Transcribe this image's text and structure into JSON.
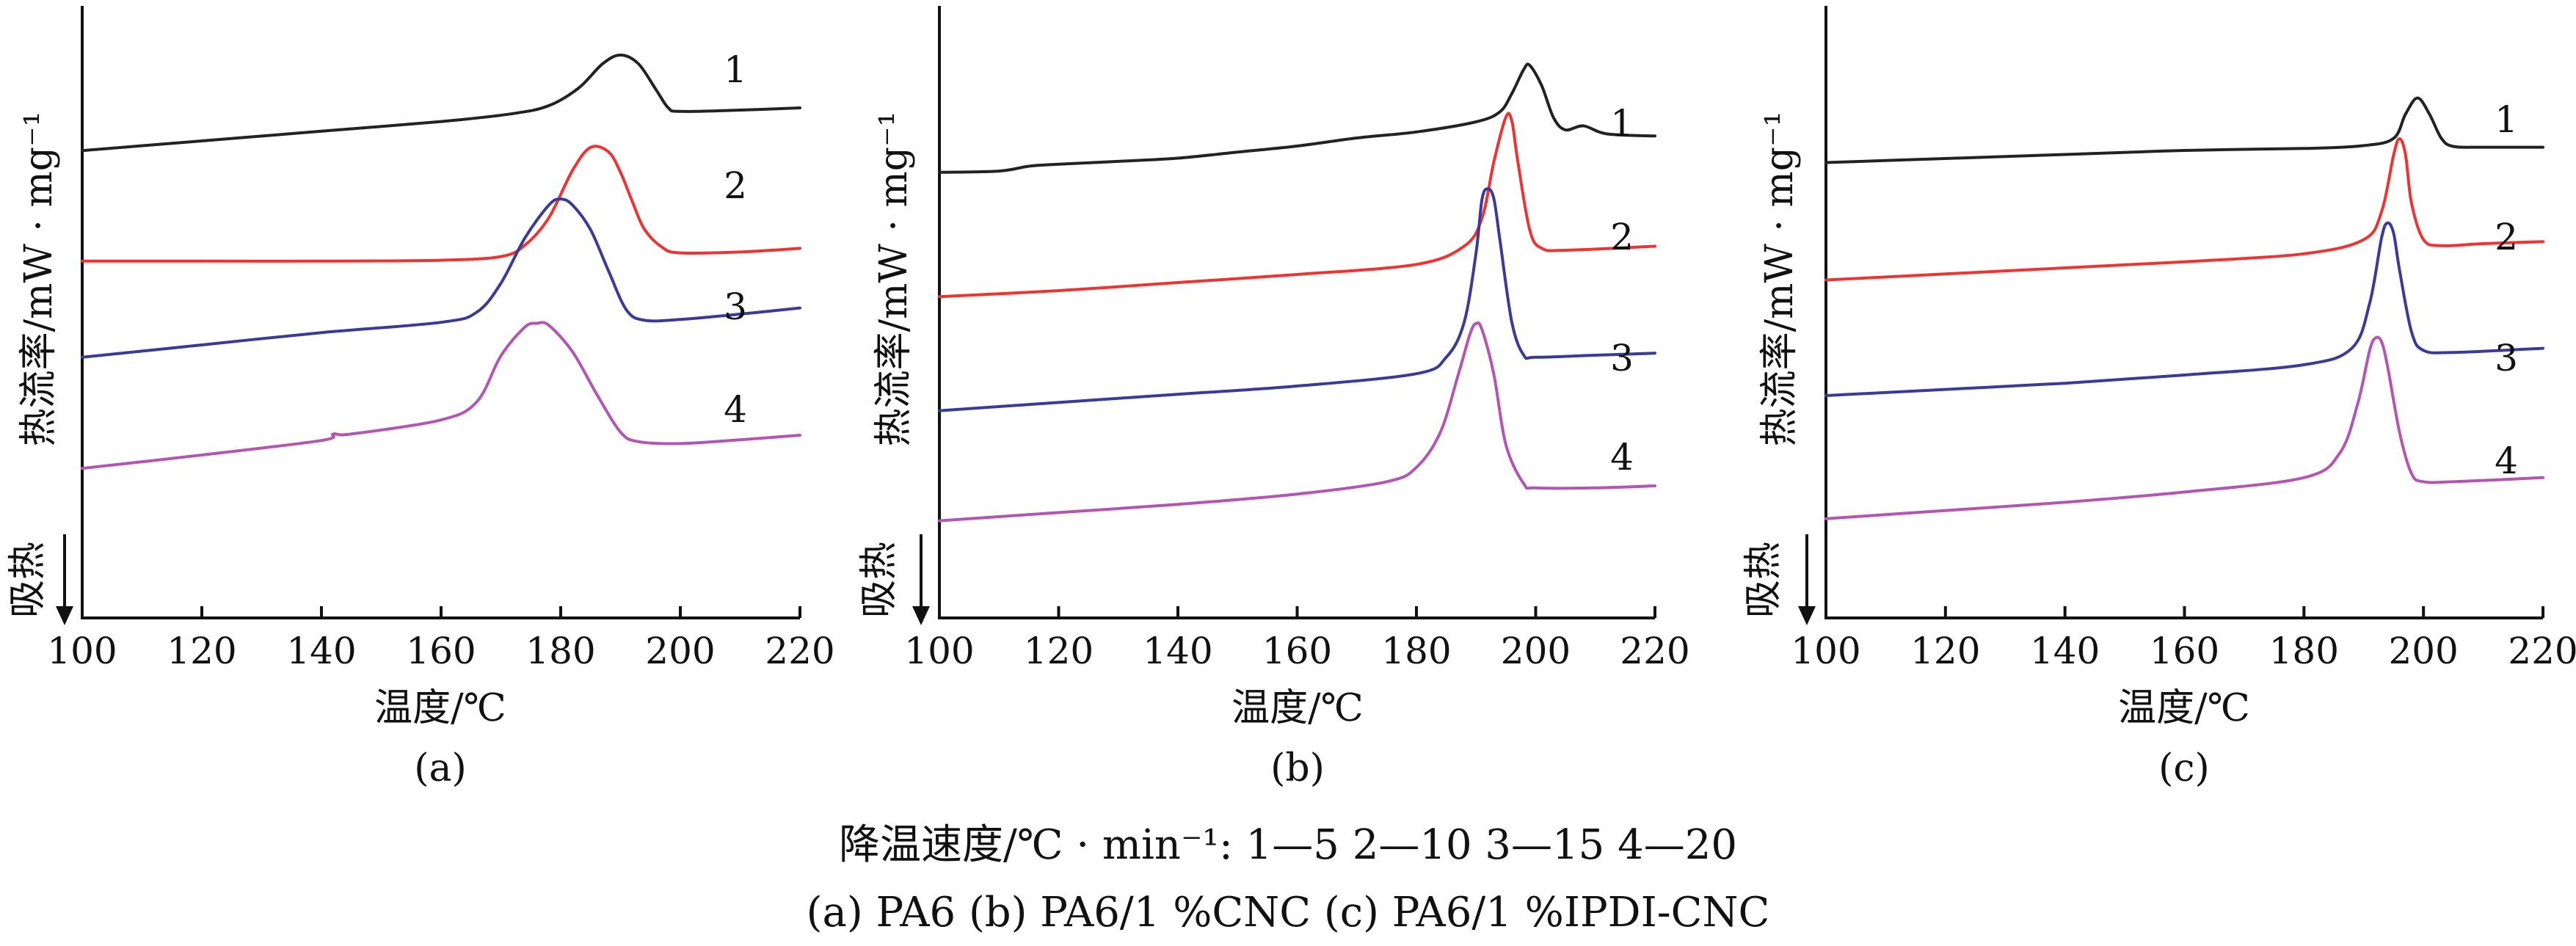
{
  "chart_data": [
    {
      "type": "line",
      "panel": "(a)",
      "xlabel": "温度/℃",
      "ylabel": "热流率/mW · mg⁻¹",
      "ylabel_endo": "吸热",
      "xlim": [
        100,
        220
      ],
      "xticks": [
        "100",
        "120",
        "140",
        "160",
        "180",
        "200",
        "220"
      ],
      "yunits": "relative",
      "series": [
        {
          "name": "1",
          "color": "#222222",
          "x": [
            100,
            120,
            140,
            160,
            172,
            178,
            183,
            187,
            190,
            193,
            196,
            198,
            200,
            210,
            220
          ],
          "y": [
            -0.92,
            -0.7,
            -0.48,
            -0.26,
            -0.08,
            0.1,
            0.5,
            1.05,
            1.25,
            1.05,
            0.45,
            0.05,
            -0.03,
            0.0,
            0.05
          ]
        },
        {
          "name": "2",
          "color": "#ee3333",
          "x": [
            100,
            120,
            140,
            160,
            170,
            174,
            178,
            182,
            185,
            188,
            190,
            192,
            194,
            197,
            200,
            210,
            220
          ],
          "y": [
            -0.9,
            -0.9,
            -0.9,
            -0.88,
            -0.8,
            -0.55,
            0.05,
            1.1,
            1.6,
            1.5,
            1.05,
            0.4,
            -0.2,
            -0.6,
            -0.72,
            -0.7,
            -0.62
          ]
        },
        {
          "name": "3",
          "color": "#3a3a99",
          "x": [
            100,
            120,
            140,
            160,
            166,
            170,
            174,
            178,
            180,
            182,
            185,
            188,
            191,
            194,
            200,
            210,
            220
          ],
          "y": [
            -0.3,
            0.0,
            0.3,
            0.55,
            0.8,
            1.5,
            2.6,
            3.4,
            3.55,
            3.4,
            2.8,
            1.8,
            0.85,
            0.6,
            0.62,
            0.75,
            0.9
          ]
        },
        {
          "name": "4",
          "color": "#b455b4",
          "x": [
            100,
            120,
            140,
            142,
            145,
            160,
            166,
            170,
            174,
            176,
            178,
            182,
            186,
            190,
            193,
            200,
            210,
            220
          ],
          "y": [
            -0.35,
            0.0,
            0.38,
            0.55,
            0.55,
            0.92,
            1.4,
            2.6,
            3.35,
            3.45,
            3.4,
            2.7,
            1.6,
            0.6,
            0.35,
            0.3,
            0.4,
            0.52
          ]
        }
      ],
      "curve_labels": [
        "1",
        "2",
        "3",
        "4"
      ]
    },
    {
      "type": "line",
      "panel": "(b)",
      "xlabel": "温度/℃",
      "ylabel": "热流率/mW · mg⁻¹",
      "ylabel_endo": "吸热",
      "xlim": [
        100,
        220
      ],
      "xticks": [
        "100",
        "120",
        "140",
        "160",
        "180",
        "200",
        "220"
      ],
      "yunits": "relative",
      "series": [
        {
          "name": "1",
          "color": "#222222",
          "x": [
            100,
            110,
            115,
            120,
            130,
            140,
            150,
            160,
            170,
            180,
            190,
            194,
            196,
            198,
            199,
            201,
            203,
            205,
            208,
            212,
            220
          ],
          "y": [
            -0.45,
            -0.42,
            -0.3,
            -0.25,
            -0.18,
            -0.1,
            0.05,
            0.2,
            0.4,
            0.55,
            0.8,
            1.05,
            1.5,
            2.1,
            2.2,
            1.7,
            0.9,
            0.6,
            0.7,
            0.5,
            0.45
          ]
        },
        {
          "name": "2",
          "color": "#ee3333",
          "x": [
            100,
            120,
            140,
            160,
            180,
            188,
            191,
            193,
            195,
            196,
            197,
            199,
            201,
            205,
            220
          ],
          "y": [
            -0.35,
            -0.2,
            0.0,
            0.2,
            0.45,
            0.9,
            1.6,
            3.0,
            4.1,
            4.0,
            3.0,
            1.3,
            0.85,
            0.8,
            0.9
          ]
        },
        {
          "name": "3",
          "color": "#3a3a99",
          "x": [
            100,
            120,
            140,
            160,
            180,
            185,
            188,
            190,
            191,
            192,
            193,
            194,
            196,
            198,
            200,
            210,
            220
          ],
          "y": [
            -0.35,
            -0.15,
            0.05,
            0.25,
            0.55,
            0.95,
            1.8,
            3.5,
            4.8,
            5.05,
            4.8,
            3.8,
            1.8,
            1.0,
            0.95,
            1.0,
            1.05
          ]
        },
        {
          "name": "4",
          "color": "#b455b4",
          "x": [
            100,
            120,
            140,
            160,
            175,
            180,
            184,
            187,
            189,
            190,
            191,
            193,
            195,
            198,
            200,
            210,
            220
          ],
          "y": [
            -0.35,
            -0.15,
            0.05,
            0.3,
            0.6,
            0.95,
            1.8,
            3.2,
            4.2,
            4.45,
            4.3,
            3.2,
            1.5,
            0.55,
            0.45,
            0.45,
            0.5
          ]
        }
      ],
      "curve_labels": [
        "1",
        "2",
        "3",
        "4"
      ]
    },
    {
      "type": "line",
      "panel": "(c)",
      "xlabel": "温度/℃",
      "ylabel": "热流率/mW · mg⁻¹",
      "ylabel_endo": "吸热",
      "xlim": [
        100,
        220
      ],
      "xticks": [
        "100",
        "120",
        "140",
        "160",
        "180",
        "200",
        "220"
      ],
      "yunits": "relative",
      "series": [
        {
          "name": "1",
          "color": "#222222",
          "x": [
            100,
            120,
            140,
            160,
            180,
            190,
            195,
            197,
            199,
            201,
            203,
            205,
            210,
            220
          ],
          "y": [
            -0.3,
            -0.2,
            -0.1,
            0.0,
            0.05,
            0.12,
            0.3,
            0.9,
            1.3,
            0.9,
            0.3,
            0.1,
            0.08,
            0.08
          ]
        },
        {
          "name": "2",
          "color": "#ee3333",
          "x": [
            100,
            120,
            140,
            160,
            180,
            190,
            193,
            195,
            196,
            197,
            198,
            200,
            203,
            210,
            220
          ],
          "y": [
            -0.3,
            -0.15,
            0.0,
            0.15,
            0.35,
            0.7,
            1.4,
            2.8,
            3.2,
            2.8,
            1.6,
            0.7,
            0.55,
            0.6,
            0.65
          ]
        },
        {
          "name": "3",
          "color": "#3a3a99",
          "x": [
            100,
            120,
            140,
            160,
            180,
            188,
            191,
            193,
            194,
            195,
            196,
            198,
            200,
            205,
            220
          ],
          "y": [
            -0.25,
            -0.1,
            0.05,
            0.25,
            0.5,
            0.9,
            2.0,
            3.6,
            3.95,
            3.7,
            2.8,
            1.3,
            0.85,
            0.8,
            0.9
          ]
        },
        {
          "name": "4",
          "color": "#b455b4",
          "x": [
            100,
            120,
            140,
            160,
            180,
            186,
            189,
            191,
            192,
            193,
            194,
            196,
            198,
            200,
            205,
            220
          ],
          "y": [
            -0.3,
            -0.1,
            0.1,
            0.35,
            0.7,
            1.3,
            2.5,
            3.8,
            4.1,
            4.0,
            3.4,
            1.8,
            0.8,
            0.6,
            0.6,
            0.7
          ]
        }
      ],
      "curve_labels": [
        "1",
        "2",
        "3",
        "4"
      ]
    }
  ],
  "captions": {
    "a": "(a)",
    "b": "(b)",
    "c": "(c)"
  },
  "legend": {
    "line1": "降温速度/℃ · min⁻¹:  1—5    2—10    3—15    4—20",
    "line2": "(a) PA6    (b) PA6/1 %CNC    (c) PA6/1 %IPDI-CNC"
  }
}
